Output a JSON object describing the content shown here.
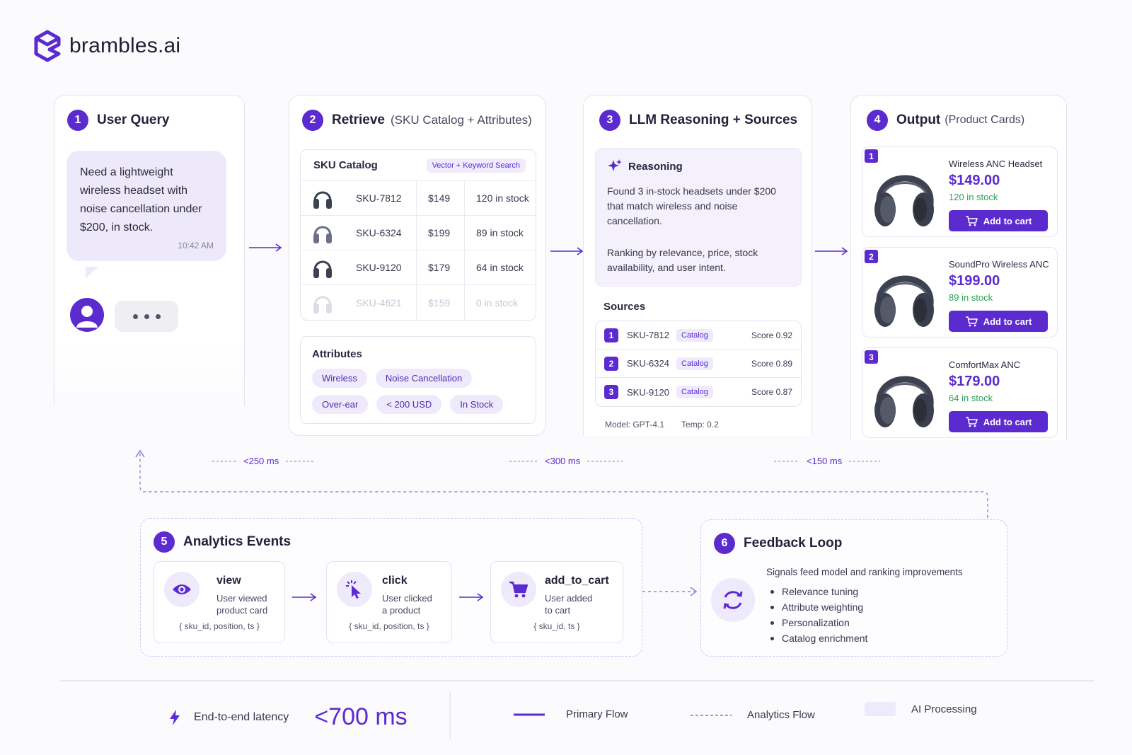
{
  "brand": {
    "name": "brambles.ai"
  },
  "steps": {
    "query": {
      "num": "1",
      "title": "User Query",
      "message": "Need a lightweight wireless headset with noise cancellation under $200, in stock.",
      "time": "10:42 AM"
    },
    "retrieve": {
      "num": "2",
      "title": "Retrieve",
      "subtitle": "(SKU Catalog + Attributes)",
      "table_title": "SKU Catalog",
      "search_chip": "Vector + Keyword Search",
      "rows": [
        {
          "sku": "SKU-7812",
          "price": "$149",
          "stock": "120 in stock"
        },
        {
          "sku": "SKU-6324",
          "price": "$199",
          "stock": "89 in stock"
        },
        {
          "sku": "SKU-9120",
          "price": "$179",
          "stock": "64 in stock"
        },
        {
          "sku": "SKU-4621",
          "price": "$159",
          "stock": "0 in stock"
        }
      ],
      "attributes_title": "Attributes",
      "attributes": [
        "Wireless",
        "Noise Cancellation",
        "Over-ear",
        "< 200 USD",
        "In Stock"
      ]
    },
    "reasoning": {
      "num": "3",
      "title": "LLM Reasoning + Sources",
      "box_title": "Reasoning",
      "text1": "Found 3 in-stock headsets under $200 that match wireless and noise cancellation.",
      "text2": "Ranking by relevance, price, stock availability, and user intent.",
      "sources_title": "Sources",
      "sources": [
        {
          "n": "1",
          "sku": "SKU-7812",
          "tag": "Catalog",
          "score": "Score 0.92"
        },
        {
          "n": "2",
          "sku": "SKU-6324",
          "tag": "Catalog",
          "score": "Score 0.89"
        },
        {
          "n": "3",
          "sku": "SKU-9120",
          "tag": "Catalog",
          "score": "Score 0.87"
        }
      ],
      "model": "Model: GPT-4.1",
      "temp": "Temp: 0.2"
    },
    "output": {
      "num": "4",
      "title": "Output",
      "subtitle": "(Product Cards)",
      "products": [
        {
          "n": "1",
          "name": "Wireless ANC Headset",
          "price": "$149.00",
          "stock": "120 in stock",
          "button": "Add to cart"
        },
        {
          "n": "2",
          "name": "SoundPro Wireless ANC",
          "price": "$199.00",
          "stock": "89 in stock",
          "button": "Add to cart"
        },
        {
          "n": "3",
          "name": "ComfortMax ANC",
          "price": "$179.00",
          "stock": "64 in stock",
          "button": "Add to cart"
        }
      ]
    },
    "analytics": {
      "num": "5",
      "title": "Analytics Events",
      "events": [
        {
          "name": "view",
          "desc1": "User viewed",
          "desc2": "product card",
          "code": "{ sku_id, position, ts }",
          "icon": "eye-icon"
        },
        {
          "name": "click",
          "desc1": "User clicked",
          "desc2": "a product",
          "code": "{ sku_id, position, ts }",
          "icon": "cursor-click-icon"
        },
        {
          "name": "add_to_cart",
          "desc1": "User added",
          "desc2": "to cart",
          "code": "{ sku_id, ts }",
          "icon": "cart-icon"
        }
      ]
    },
    "feedback": {
      "num": "6",
      "title": "Feedback Loop",
      "intro": "Signals feed model and ranking improvements",
      "items": [
        "Relevance tuning",
        "Attribute weighting",
        "Personalization",
        "Catalog enrichment"
      ]
    }
  },
  "latencies": [
    "<250 ms",
    "<300 ms",
    "<150 ms"
  ],
  "footer": {
    "label": "End-to-end latency",
    "value": "<700 ms",
    "legend": [
      "Primary Flow",
      "Analytics Flow",
      "AI Processing"
    ]
  },
  "colors": {
    "accent": "#5b2bd0",
    "stock_green": "#2f9e58",
    "ai_fill": "#efeafb"
  }
}
